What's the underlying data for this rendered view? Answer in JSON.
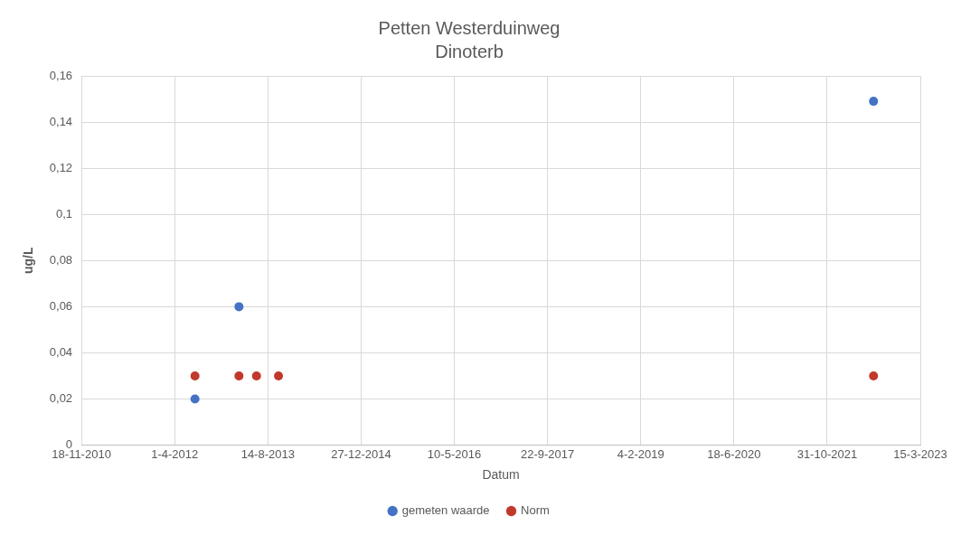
{
  "chart_data": {
    "type": "scatter",
    "title": "Petten Westerduinweg",
    "subtitle": "Dinoterb",
    "xlabel": "Datum",
    "ylabel": "ug/L",
    "series": [
      {
        "name": "gemeten waarde",
        "color": "#4472c4",
        "x": [
          "2012-07-19",
          "2013-03-12",
          "2022-07-07"
        ],
        "values": [
          0.02,
          0.06,
          0.149
        ]
      },
      {
        "name": "Norm",
        "color": "#c0392b",
        "x": [
          "2012-07-19",
          "2013-03-12",
          "2013-06-14",
          "2013-10-10",
          "2022-07-07"
        ],
        "values": [
          0.03,
          0.03,
          0.03,
          0.03,
          0.03
        ]
      }
    ],
    "xlim": [
      "2010-11-18",
      "2023-03-15"
    ],
    "xticks": [
      {
        "value": "2010-11-18",
        "label": "18-11-2010"
      },
      {
        "value": "2012-04-01",
        "label": "1-4-2012"
      },
      {
        "value": "2013-08-14",
        "label": "14-8-2013"
      },
      {
        "value": "2014-12-27",
        "label": "27-12-2014"
      },
      {
        "value": "2016-05-10",
        "label": "10-5-2016"
      },
      {
        "value": "2017-09-22",
        "label": "22-9-2017"
      },
      {
        "value": "2019-02-04",
        "label": "4-2-2019"
      },
      {
        "value": "2020-06-18",
        "label": "18-6-2020"
      },
      {
        "value": "2021-10-31",
        "label": "31-10-2021"
      },
      {
        "value": "2023-03-15",
        "label": "15-3-2023"
      }
    ],
    "ylim": [
      0,
      0.16
    ],
    "yticks": [
      0,
      {
        "value": 0.02,
        "label": "0,02"
      },
      {
        "value": 0.04,
        "label": "0,04"
      },
      {
        "value": 0.06,
        "label": "0,06"
      },
      {
        "value": 0.08,
        "label": "0,08"
      },
      {
        "value": 0.1,
        "label": "0,1"
      },
      {
        "value": 0.12,
        "label": "0,12"
      },
      {
        "value": 0.14,
        "label": "0,14"
      },
      {
        "value": 0.16,
        "label": "0,16"
      }
    ],
    "grid": true,
    "legend": "bottom",
    "marker": "circle"
  }
}
